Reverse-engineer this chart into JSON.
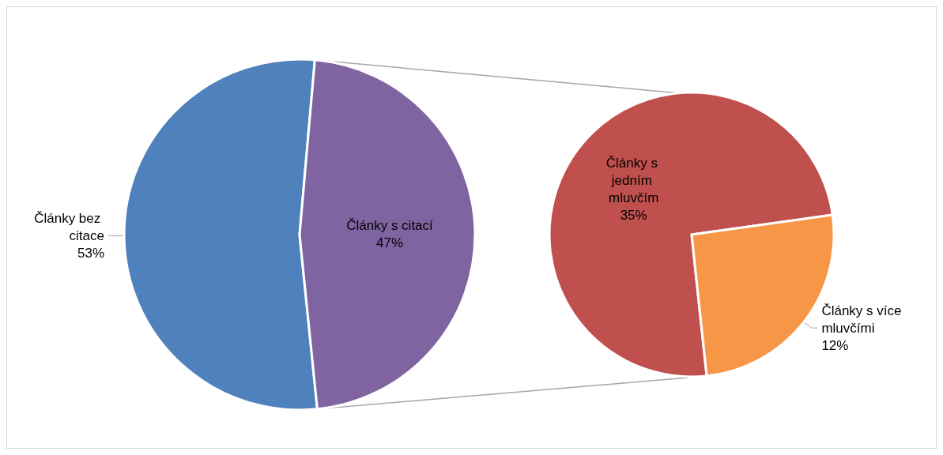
{
  "chart_data": [
    {
      "type": "pie",
      "categories": [
        "Články bez citace",
        "Články s citací"
      ],
      "values": [
        53,
        47
      ],
      "value_labels": [
        "53%",
        "47%"
      ],
      "colors": [
        "#4f81bd",
        "#8064a2"
      ],
      "legend": false
    },
    {
      "type": "pie",
      "categories": [
        "Články s jedním mluvčím",
        "Články s více mluvčími"
      ],
      "values": [
        35,
        12
      ],
      "value_labels": [
        "35%",
        "12%"
      ],
      "colors": [
        "#c0504d",
        "#f79646"
      ],
      "legend": false
    }
  ]
}
